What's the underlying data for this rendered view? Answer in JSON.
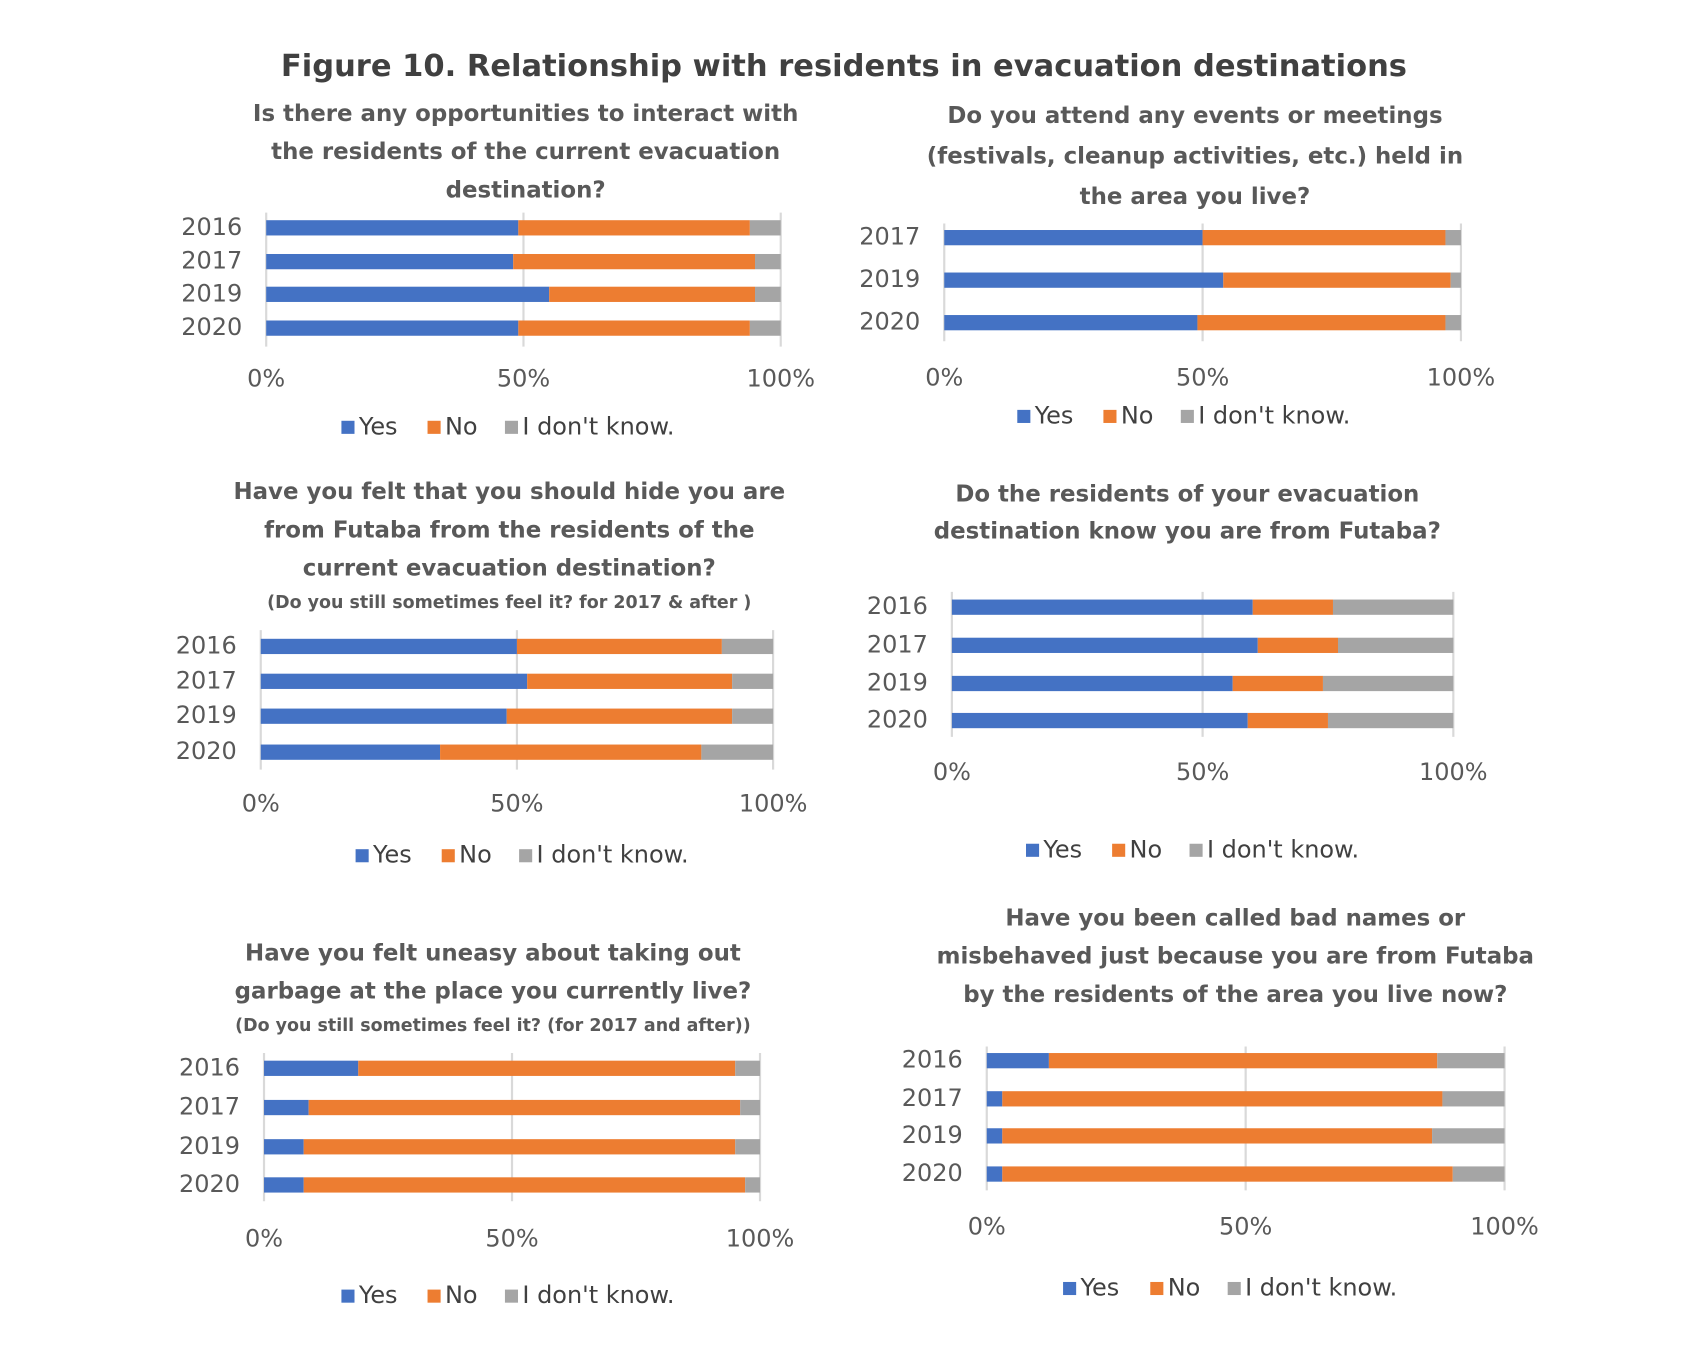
{
  "title": "Figure 10. Relationship with residents in evacuation destinations",
  "chart_data": [
    {
      "type": "bar",
      "orientation": "horizontal",
      "stacked": true,
      "title": [
        "Is there any opportunities to interact with",
        "the residents of the current evacuation",
        "destination?"
      ],
      "categories": [
        "2016",
        "2017",
        "2019",
        "2020"
      ],
      "series": [
        {
          "name": "Yes",
          "color": "#4472c4",
          "values": [
            49,
            48,
            55,
            49
          ]
        },
        {
          "name": "No",
          "color": "#ed7d31",
          "values": [
            45,
            47,
            40,
            45
          ]
        },
        {
          "name": "I don't know.",
          "color": "#a5a5a5",
          "values": [
            6,
            5,
            5,
            6
          ]
        }
      ],
      "xlim": [
        0,
        100
      ],
      "xticks": [
        {
          "value": 0,
          "label": "0%"
        },
        {
          "value": 50,
          "label": "50%"
        },
        {
          "value": 100,
          "label": "100%"
        }
      ],
      "grid": true,
      "legend": "bottom"
    },
    {
      "type": "bar",
      "orientation": "horizontal",
      "stacked": true,
      "title": [
        "Do you attend any events or meetings",
        "(festivals, cleanup activities, etc.) held in",
        "the area you live?"
      ],
      "categories": [
        "2017",
        "2019",
        "2020"
      ],
      "series": [
        {
          "name": "Yes",
          "color": "#4472c4",
          "values": [
            50,
            54,
            49
          ]
        },
        {
          "name": "No",
          "color": "#ed7d31",
          "values": [
            47,
            44,
            48
          ]
        },
        {
          "name": "I don't know.",
          "color": "#a5a5a5",
          "values": [
            3,
            2,
            3
          ]
        }
      ],
      "xlim": [
        0,
        100
      ],
      "xticks": [
        {
          "value": 0,
          "label": "0%"
        },
        {
          "value": 50,
          "label": "50%"
        },
        {
          "value": 100,
          "label": "100%"
        }
      ],
      "grid": true,
      "legend": "bottom"
    },
    {
      "type": "bar",
      "orientation": "horizontal",
      "stacked": true,
      "title": [
        "Have you felt that you should hide you are",
        "from Futaba from the residents of the",
        "current evacuation destination?"
      ],
      "subtitle": "(Do you still sometimes feel it? for 2017 & after )",
      "categories": [
        "2016",
        "2017",
        "2019",
        "2020"
      ],
      "series": [
        {
          "name": "Yes",
          "color": "#4472c4",
          "values": [
            50,
            52,
            48,
            35
          ]
        },
        {
          "name": "No",
          "color": "#ed7d31",
          "values": [
            40,
            40,
            44,
            51
          ]
        },
        {
          "name": "I don't know.",
          "color": "#a5a5a5",
          "values": [
            10,
            8,
            8,
            14
          ]
        }
      ],
      "xlim": [
        0,
        100
      ],
      "xticks": [
        {
          "value": 0,
          "label": "0%"
        },
        {
          "value": 50,
          "label": "50%"
        },
        {
          "value": 100,
          "label": "100%"
        }
      ],
      "grid": true,
      "legend": "bottom"
    },
    {
      "type": "bar",
      "orientation": "horizontal",
      "stacked": true,
      "title": [
        "Do the residents of your evacuation",
        "destination know you are from Futaba?"
      ],
      "categories": [
        "2016",
        "2017",
        "2019",
        "2020"
      ],
      "series": [
        {
          "name": "Yes",
          "color": "#4472c4",
          "values": [
            60,
            61,
            56,
            59
          ]
        },
        {
          "name": "No",
          "color": "#ed7d31",
          "values": [
            16,
            16,
            18,
            16
          ]
        },
        {
          "name": "I don't know.",
          "color": "#a5a5a5",
          "values": [
            24,
            23,
            26,
            25
          ]
        }
      ],
      "xlim": [
        0,
        100
      ],
      "xticks": [
        {
          "value": 0,
          "label": "0%"
        },
        {
          "value": 50,
          "label": "50%"
        },
        {
          "value": 100,
          "label": "100%"
        }
      ],
      "grid": true,
      "legend": "bottom"
    },
    {
      "type": "bar",
      "orientation": "horizontal",
      "stacked": true,
      "title": [
        "Have you felt uneasy about taking out",
        "garbage at the place you currently live?"
      ],
      "subtitle": "(Do you still sometimes feel it? (for 2017 and after))",
      "categories": [
        "2016",
        "2017",
        "2019",
        "2020"
      ],
      "series": [
        {
          "name": "Yes",
          "color": "#4472c4",
          "values": [
            19,
            9,
            8,
            8
          ]
        },
        {
          "name": "No",
          "color": "#ed7d31",
          "values": [
            76,
            87,
            87,
            89
          ]
        },
        {
          "name": "I don't know.",
          "color": "#a5a5a5",
          "values": [
            5,
            4,
            5,
            3
          ]
        }
      ],
      "xlim": [
        0,
        100
      ],
      "xticks": [
        {
          "value": 0,
          "label": "0%"
        },
        {
          "value": 50,
          "label": "50%"
        },
        {
          "value": 100,
          "label": "100%"
        }
      ],
      "grid": true,
      "legend": "bottom"
    },
    {
      "type": "bar",
      "orientation": "horizontal",
      "stacked": true,
      "title": [
        "Have you been called bad names or",
        "misbehaved  just because you are from Futaba",
        "by the residents of the area you live now?"
      ],
      "categories": [
        "2016",
        "2017",
        "2019",
        "2020"
      ],
      "series": [
        {
          "name": "Yes",
          "color": "#4472c4",
          "values": [
            12,
            3,
            3,
            3
          ]
        },
        {
          "name": "No",
          "color": "#ed7d31",
          "values": [
            75,
            85,
            83,
            87
          ]
        },
        {
          "name": "I don't know.",
          "color": "#a5a5a5",
          "values": [
            13,
            12,
            14,
            10
          ]
        }
      ],
      "xlim": [
        0,
        100
      ],
      "xticks": [
        {
          "value": 0,
          "label": "0%"
        },
        {
          "value": 50,
          "label": "50%"
        },
        {
          "value": 100,
          "label": "100%"
        }
      ],
      "grid": true,
      "legend": "bottom"
    }
  ]
}
